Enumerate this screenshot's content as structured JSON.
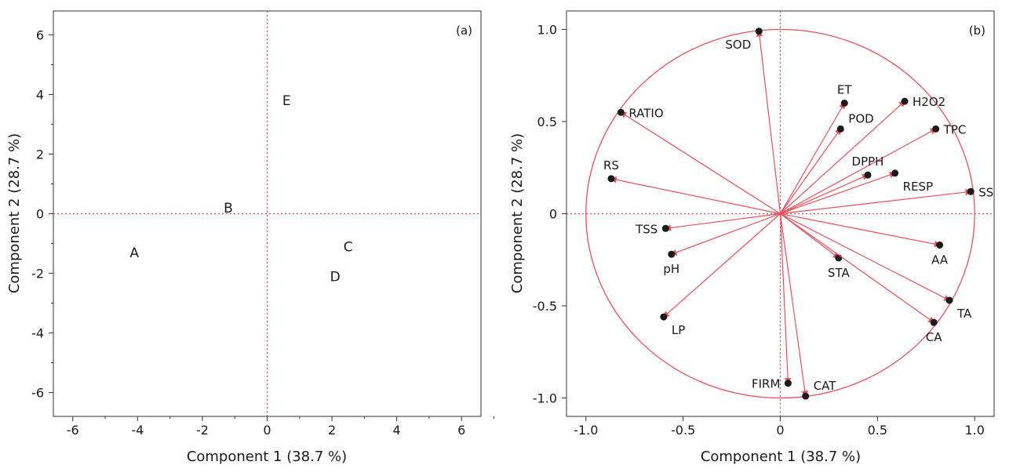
{
  "colors": {
    "accent": "#e8505b",
    "reference_line": "#e0405a",
    "point": "#1a1a1a",
    "axis": "#333333"
  },
  "chart_data": [
    {
      "type": "scatter",
      "panel_label": "(a)",
      "xlabel": "Component 1  (38.7 %)",
      "ylabel": "Component 2  (28.7 %)",
      "xlim": [
        -6.6,
        6.6
      ],
      "ylim": [
        -6.8,
        6.8
      ],
      "xticks": [
        -6,
        -4,
        -2,
        0,
        2,
        4,
        6
      ],
      "yticks": [
        -6,
        -4,
        -2,
        0,
        2,
        4,
        6
      ],
      "grid": false,
      "reference_lines": {
        "x": 0,
        "y": 0
      },
      "points": [
        {
          "label": "A",
          "x": -4.1,
          "y": -1.3
        },
        {
          "label": "B",
          "x": -1.2,
          "y": 0.2
        },
        {
          "label": "C",
          "x": 2.5,
          "y": -1.1
        },
        {
          "label": "D",
          "x": 2.1,
          "y": -2.1
        },
        {
          "label": "E",
          "x": 0.6,
          "y": 3.8
        }
      ]
    },
    {
      "type": "scatter",
      "subtype": "biplot-loadings",
      "panel_label": "(b)",
      "xlabel": "Component 1  (38.7 %)",
      "ylabel": "Component 2  (28.7 %)",
      "xlim": [
        -1.1,
        1.1
      ],
      "ylim": [
        -1.1,
        1.1
      ],
      "xticks": [
        -1.0,
        -0.5,
        0,
        0.5,
        1.0
      ],
      "xtick_labels": [
        "-1.0",
        "-0.5",
        "0",
        "0.5",
        "1.0"
      ],
      "yticks": [
        -1.0,
        -0.5,
        0,
        0.5,
        1.0
      ],
      "ytick_labels": [
        "-1.0",
        "-0.5",
        "0",
        "0.5",
        "1.0"
      ],
      "grid": false,
      "reference_lines": {
        "x": 0,
        "y": 0
      },
      "unit_circle": true,
      "loadings": [
        {
          "label": "SOD",
          "x": -0.11,
          "y": 0.99,
          "anchor": "below-left"
        },
        {
          "label": "ET",
          "x": 0.33,
          "y": 0.6,
          "anchor": "above"
        },
        {
          "label": "H2O2",
          "x": 0.64,
          "y": 0.61,
          "anchor": "right"
        },
        {
          "label": "POD",
          "x": 0.31,
          "y": 0.46,
          "anchor": "above-right"
        },
        {
          "label": "TPC",
          "x": 0.8,
          "y": 0.46,
          "anchor": "right"
        },
        {
          "label": "RATIO",
          "x": -0.82,
          "y": 0.55,
          "anchor": "right"
        },
        {
          "label": "DPPH",
          "x": 0.45,
          "y": 0.21,
          "anchor": "above"
        },
        {
          "label": "RESP",
          "x": 0.59,
          "y": 0.22,
          "anchor": "below-right"
        },
        {
          "label": "RS",
          "x": -0.87,
          "y": 0.19,
          "anchor": "above"
        },
        {
          "label": "SS",
          "x": 0.98,
          "y": 0.12,
          "anchor": "right"
        },
        {
          "label": "TSS",
          "x": -0.59,
          "y": -0.08,
          "anchor": "left"
        },
        {
          "label": "AA",
          "x": 0.82,
          "y": -0.17,
          "anchor": "below"
        },
        {
          "label": "pH",
          "x": -0.56,
          "y": -0.22,
          "anchor": "below"
        },
        {
          "label": "STA",
          "x": 0.3,
          "y": -0.24,
          "anchor": "below"
        },
        {
          "label": "TA",
          "x": 0.87,
          "y": -0.47,
          "anchor": "below-right"
        },
        {
          "label": "LP",
          "x": -0.6,
          "y": -0.56,
          "anchor": "below-right"
        },
        {
          "label": "CA",
          "x": 0.79,
          "y": -0.59,
          "anchor": "below"
        },
        {
          "label": "FIRM",
          "x": 0.04,
          "y": -0.92,
          "anchor": "left"
        },
        {
          "label": "CAT",
          "x": 0.13,
          "y": -0.99,
          "anchor": "above-right"
        }
      ]
    }
  ]
}
